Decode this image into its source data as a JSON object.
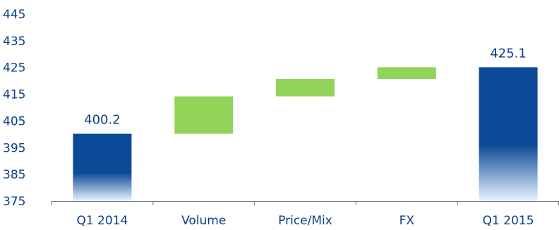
{
  "chart_data": {
    "type": "bar",
    "subtype": "waterfall",
    "categories": [
      "Q1 2014",
      "Volume",
      "Price/Mix",
      "FX",
      "Q1 2015"
    ],
    "bars": [
      {
        "category": "Q1 2014",
        "kind": "total",
        "start": 375,
        "end": 400.2,
        "label": "400.2"
      },
      {
        "category": "Volume",
        "kind": "delta",
        "start": 400.2,
        "end": 414.2
      },
      {
        "category": "Price/Mix",
        "kind": "delta",
        "start": 414.2,
        "end": 420.7
      },
      {
        "category": "FX",
        "kind": "delta",
        "start": 420.7,
        "end": 425.1
      },
      {
        "category": "Q1 2015",
        "kind": "total",
        "start": 375,
        "end": 425.1,
        "label": "425.1"
      }
    ],
    "ylim": [
      375,
      445
    ],
    "yticks": [
      "375",
      "385",
      "395",
      "405",
      "415",
      "425",
      "435",
      "445"
    ],
    "title": "",
    "xlabel": "",
    "ylabel": "",
    "grid": false,
    "legend": "none"
  },
  "colors": {
    "total_top": "#0b4a96",
    "total_bottom": "#e9f4ff",
    "delta": "#93d35a",
    "text": "#0a3f86",
    "axis": "#6c7a89"
  }
}
